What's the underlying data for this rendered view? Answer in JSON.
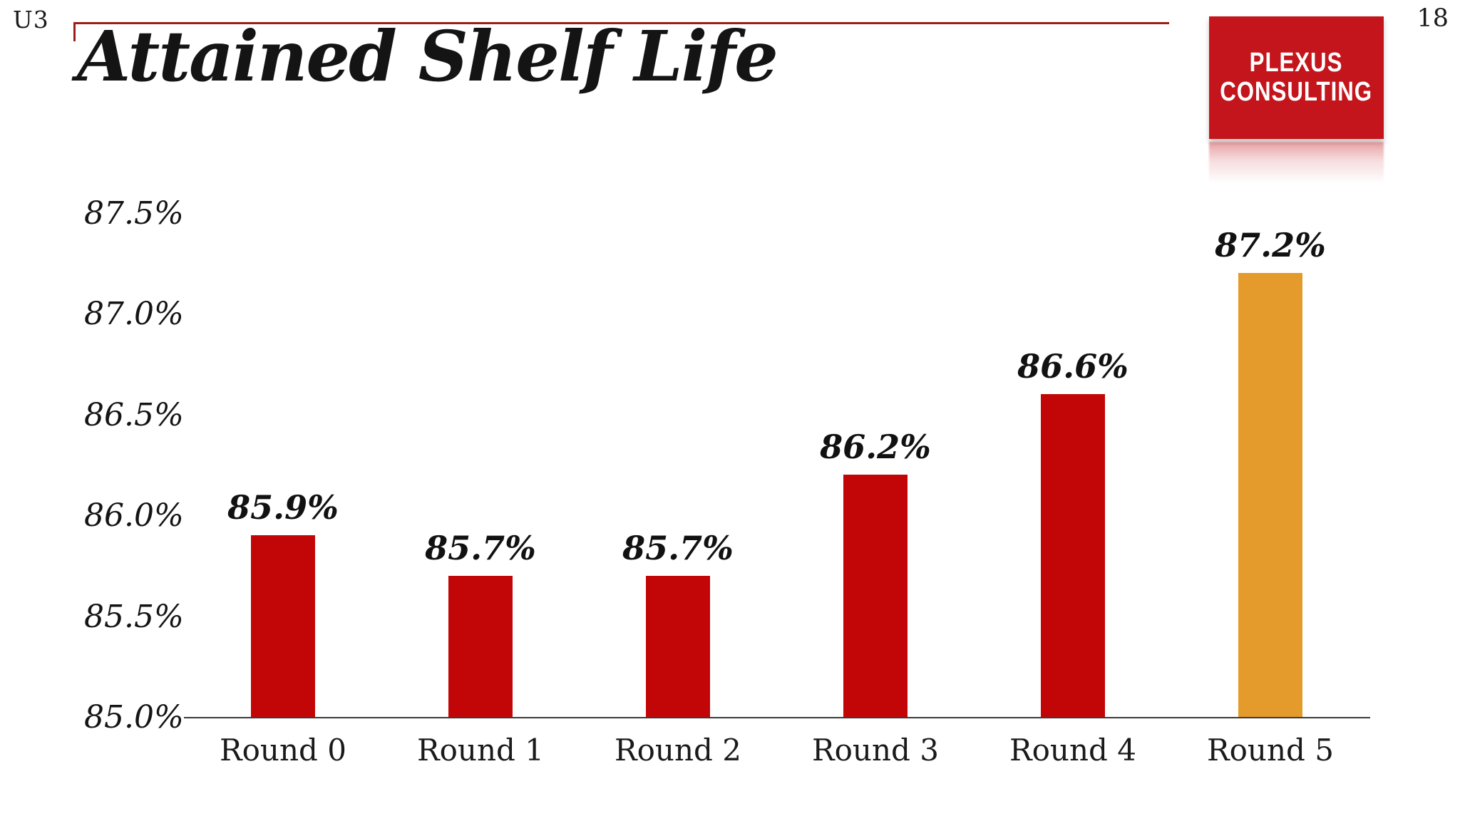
{
  "page": {
    "slide_code": "U3",
    "page_number": "18"
  },
  "title": "Attained Shelf Life",
  "logo": {
    "line1": "PLEXUS",
    "line2": "CONSULTING",
    "bg_color": "#c4151c",
    "text_color": "#ffffff"
  },
  "accent_color": "#9e1b1b",
  "chart_data": {
    "type": "bar",
    "title": "Attained Shelf Life",
    "categories": [
      "Round 0",
      "Round 1",
      "Round 2",
      "Round 3",
      "Round 4",
      "Round 5"
    ],
    "values": [
      85.9,
      85.7,
      85.7,
      86.2,
      86.6,
      87.2
    ],
    "data_labels": [
      "85.9%",
      "85.7%",
      "85.7%",
      "86.2%",
      "86.6%",
      "87.2%"
    ],
    "bar_colors": [
      "#c20608",
      "#c20608",
      "#c20608",
      "#c20608",
      "#c20608",
      "#e49b2b"
    ],
    "highlight_color": "#e49b2b",
    "base_color": "#c20608",
    "yticks": [
      "85.0%",
      "85.5%",
      "86.0%",
      "86.5%",
      "87.0%",
      "87.5%"
    ],
    "ytick_values": [
      85.0,
      85.5,
      86.0,
      86.5,
      87.0,
      87.5
    ],
    "ylim": [
      85.0,
      87.5
    ],
    "xlabel": "",
    "ylabel": "",
    "grid": false,
    "legend": null
  }
}
